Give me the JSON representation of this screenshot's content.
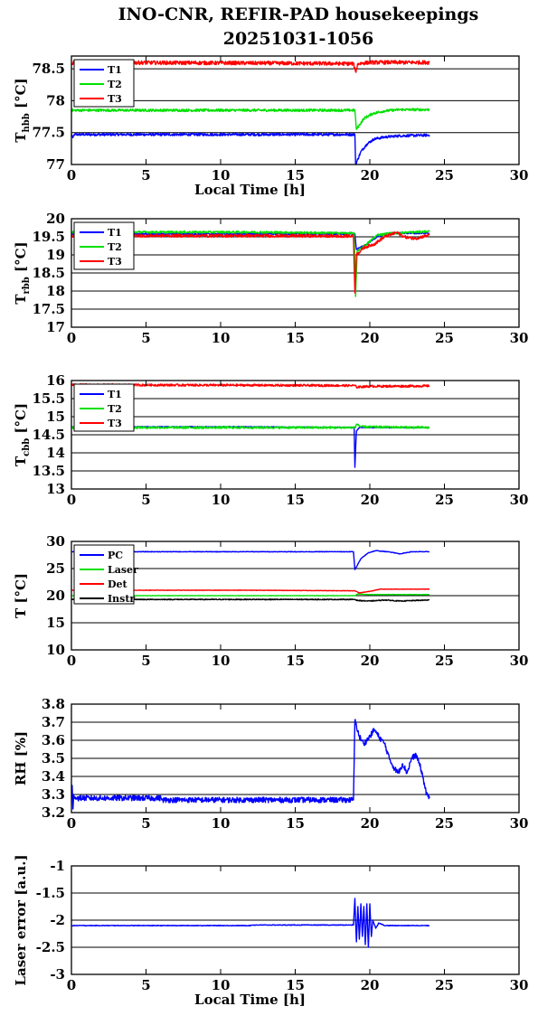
{
  "figure": {
    "title_line1": "INO-CNR, REFIR-PAD housekeepings",
    "title_line2": "20251031-1056"
  },
  "chart_data": [
    {
      "type": "line",
      "ylabel_main": "T",
      "ylabel_sub": "hbb",
      "ylabel_unit": " [°C]",
      "xlabel": "Local Time [h]",
      "xlim": [
        0,
        30
      ],
      "ylim": [
        77,
        78.7
      ],
      "xticks": [
        0,
        5,
        10,
        15,
        20,
        25,
        30
      ],
      "yticks": [
        77,
        77.5,
        78,
        78.5
      ],
      "ytick_labels": [
        "77",
        "77.5",
        "78",
        "78.5"
      ],
      "grid": "horizontal",
      "legend_position": "top-left",
      "series": [
        {
          "name": "T1",
          "color": "#0000ff",
          "noise": 0.02,
          "points": [
            [
              0,
              77.47
            ],
            [
              0.1,
              77.42
            ],
            [
              0.2,
              77.47
            ],
            [
              12,
              77.47
            ],
            [
              19,
              77.47
            ],
            [
              19.05,
              77.0
            ],
            [
              19.4,
              77.2
            ],
            [
              19.8,
              77.32
            ],
            [
              20.3,
              77.4
            ],
            [
              21,
              77.43
            ],
            [
              22,
              77.45
            ],
            [
              24,
              77.46
            ]
          ]
        },
        {
          "name": "T2",
          "color": "#00e000",
          "noise": 0.02,
          "points": [
            [
              0,
              77.85
            ],
            [
              12,
              77.85
            ],
            [
              19,
              77.85
            ],
            [
              19.1,
              77.55
            ],
            [
              19.6,
              77.72
            ],
            [
              20.2,
              77.8
            ],
            [
              21,
              77.84
            ],
            [
              22,
              77.86
            ],
            [
              24,
              77.86
            ]
          ]
        },
        {
          "name": "T3",
          "color": "#ff0000",
          "noise": 0.03,
          "points": [
            [
              0,
              78.59
            ],
            [
              0.5,
              78.6
            ],
            [
              12,
              78.59
            ],
            [
              18.9,
              78.58
            ],
            [
              19.05,
              78.45
            ],
            [
              19.2,
              78.58
            ],
            [
              20,
              78.6
            ],
            [
              24,
              78.6
            ]
          ]
        }
      ]
    },
    {
      "type": "line",
      "ylabel_main": "T",
      "ylabel_sub": "rbb",
      "ylabel_unit": " [°C]",
      "xlabel": "",
      "xlim": [
        0,
        30
      ],
      "ylim": [
        17,
        20
      ],
      "xticks": [
        0,
        5,
        10,
        15,
        20,
        25,
        30
      ],
      "yticks": [
        17,
        17.5,
        18,
        18.5,
        19,
        19.5,
        20
      ],
      "ytick_labels": [
        "17",
        "17.5",
        "18",
        "18.5",
        "19",
        "19.5",
        "20"
      ],
      "grid": "horizontal",
      "legend_position": "top-left",
      "series": [
        {
          "name": "T1",
          "color": "#0000ff",
          "noise": 0.02,
          "points": [
            [
              0,
              19.58
            ],
            [
              12,
              19.58
            ],
            [
              19,
              19.58
            ],
            [
              19.1,
              19.15
            ],
            [
              19.8,
              19.3
            ],
            [
              20.5,
              19.5
            ],
            [
              21.2,
              19.6
            ],
            [
              22,
              19.6
            ],
            [
              24,
              19.6
            ]
          ]
        },
        {
          "name": "T2",
          "color": "#00e000",
          "noise": 0.03,
          "points": [
            [
              0,
              19.63
            ],
            [
              12,
              19.63
            ],
            [
              18.95,
              19.6
            ],
            [
              19.05,
              17.85
            ],
            [
              19.15,
              19.1
            ],
            [
              19.8,
              19.3
            ],
            [
              20.5,
              19.55
            ],
            [
              21.5,
              19.6
            ],
            [
              24,
              19.65
            ]
          ]
        },
        {
          "name": "T3",
          "color": "#ff0000",
          "noise": 0.04,
          "points": [
            [
              0,
              19.53
            ],
            [
              12,
              19.53
            ],
            [
              18.9,
              19.52
            ],
            [
              19.0,
              17.95
            ],
            [
              19.1,
              19.0
            ],
            [
              19.6,
              19.2
            ],
            [
              20.3,
              19.3
            ],
            [
              21,
              19.5
            ],
            [
              21.8,
              19.62
            ],
            [
              22.3,
              19.5
            ],
            [
              23,
              19.45
            ],
            [
              24,
              19.55
            ]
          ]
        }
      ]
    },
    {
      "type": "line",
      "ylabel_main": "T",
      "ylabel_sub": "cbb",
      "ylabel_unit": " [°C]",
      "xlabel": "",
      "xlim": [
        0,
        30
      ],
      "ylim": [
        13,
        16
      ],
      "xticks": [
        0,
        5,
        10,
        15,
        20,
        25,
        30
      ],
      "yticks": [
        13,
        13.5,
        14,
        14.5,
        15,
        15.5,
        16
      ],
      "ytick_labels": [
        "13",
        "13.5",
        "14",
        "14.5",
        "15",
        "15.5",
        "16"
      ],
      "grid": "horizontal",
      "legend_position": "top-left",
      "series": [
        {
          "name": "T1",
          "color": "#0000ff",
          "noise": 0.01,
          "points": [
            [
              0,
              14.72
            ],
            [
              12,
              14.72
            ],
            [
              18.95,
              14.7
            ],
            [
              19.0,
              13.6
            ],
            [
              19.1,
              14.6
            ],
            [
              19.3,
              14.7
            ],
            [
              24,
              14.7
            ]
          ]
        },
        {
          "name": "T2",
          "color": "#00e000",
          "noise": 0.03,
          "points": [
            [
              0,
              14.7
            ],
            [
              12,
              14.7
            ],
            [
              19,
              14.7
            ],
            [
              19.15,
              14.8
            ],
            [
              19.4,
              14.72
            ],
            [
              24,
              14.7
            ]
          ]
        },
        {
          "name": "T3",
          "color": "#ff0000",
          "noise": 0.03,
          "points": [
            [
              0,
              15.88
            ],
            [
              12,
              15.87
            ],
            [
              19,
              15.86
            ],
            [
              19.1,
              15.82
            ],
            [
              20,
              15.84
            ],
            [
              24,
              15.85
            ]
          ]
        }
      ]
    },
    {
      "type": "line",
      "ylabel_main": "T [°C]",
      "ylabel_sub": "",
      "ylabel_unit": "",
      "xlabel": "",
      "xlim": [
        0,
        30
      ],
      "ylim": [
        10,
        30
      ],
      "xticks": [
        0,
        5,
        10,
        15,
        20,
        25,
        30
      ],
      "yticks": [
        10,
        15,
        20,
        25,
        30
      ],
      "ytick_labels": [
        "10",
        "15",
        "20",
        "25",
        "30"
      ],
      "grid": "horizontal",
      "legend_position": "top-left",
      "series": [
        {
          "name": "PC",
          "color": "#0000ff",
          "noise": 0.05,
          "points": [
            [
              0,
              28.1
            ],
            [
              12,
              28.1
            ],
            [
              18.9,
              28.1
            ],
            [
              19.0,
              24.8
            ],
            [
              19.4,
              26.8
            ],
            [
              19.9,
              27.9
            ],
            [
              20.4,
              28.3
            ],
            [
              21.5,
              28.0
            ],
            [
              22,
              27.7
            ],
            [
              22.8,
              28.1
            ],
            [
              24,
              28.1
            ]
          ]
        },
        {
          "name": "Laser",
          "color": "#00e000",
          "noise": 0.03,
          "points": [
            [
              0,
              20.0
            ],
            [
              12,
              20.0
            ],
            [
              19,
              20.0
            ],
            [
              19.2,
              20.3
            ],
            [
              20,
              20.2
            ],
            [
              24,
              20.2
            ]
          ]
        },
        {
          "name": "Det",
          "color": "#ff0000",
          "noise": 0.04,
          "points": [
            [
              0,
              21.0
            ],
            [
              12,
              21.0
            ],
            [
              19,
              20.9
            ],
            [
              19.3,
              20.5
            ],
            [
              20,
              20.8
            ],
            [
              20.7,
              21.2
            ],
            [
              24,
              21.2
            ]
          ]
        },
        {
          "name": "Instr",
          "color": "#000000",
          "noise": 0.08,
          "points": [
            [
              0,
              19.3
            ],
            [
              12,
              19.3
            ],
            [
              19,
              19.3
            ],
            [
              19.2,
              19.1
            ],
            [
              20,
              19.0
            ],
            [
              21,
              19.2
            ],
            [
              22,
              19.0
            ],
            [
              24,
              19.2
            ]
          ]
        }
      ]
    },
    {
      "type": "line",
      "ylabel_main": "RH [%]",
      "ylabel_sub": "",
      "ylabel_unit": "",
      "xlabel": "",
      "xlim": [
        0,
        30
      ],
      "ylim": [
        3.2,
        3.8
      ],
      "xticks": [
        0,
        5,
        10,
        15,
        20,
        25,
        30
      ],
      "yticks": [
        3.2,
        3.3,
        3.4,
        3.5,
        3.6,
        3.7,
        3.8
      ],
      "ytick_labels": [
        "3.2",
        "3.3",
        "3.4",
        "3.5",
        "3.6",
        "3.7",
        "3.8"
      ],
      "grid": "horizontal",
      "legend_position": "none",
      "series": [
        {
          "name": "",
          "color": "#0000ff",
          "noise": 0.015,
          "points": [
            [
              0,
              3.28
            ],
            [
              0.05,
              3.35
            ],
            [
              0.1,
              3.22
            ],
            [
              0.15,
              3.3
            ],
            [
              0.3,
              3.28
            ],
            [
              6,
              3.28
            ],
            [
              6.1,
              3.27
            ],
            [
              18,
              3.27
            ],
            [
              18.9,
              3.27
            ],
            [
              19.0,
              3.71
            ],
            [
              19.3,
              3.62
            ],
            [
              19.6,
              3.58
            ],
            [
              20.0,
              3.62
            ],
            [
              20.3,
              3.66
            ],
            [
              20.6,
              3.62
            ],
            [
              21.0,
              3.58
            ],
            [
              21.3,
              3.5
            ],
            [
              21.6,
              3.45
            ],
            [
              21.9,
              3.42
            ],
            [
              22.2,
              3.47
            ],
            [
              22.5,
              3.42
            ],
            [
              22.8,
              3.5
            ],
            [
              23.1,
              3.52
            ],
            [
              23.4,
              3.45
            ],
            [
              23.6,
              3.38
            ],
            [
              23.8,
              3.3
            ],
            [
              24,
              3.28
            ]
          ]
        }
      ]
    },
    {
      "type": "line",
      "ylabel_main": "Laser error [a.u.]",
      "ylabel_sub": "",
      "ylabel_unit": "",
      "xlabel": "Local Time [h]",
      "xlim": [
        0,
        30
      ],
      "ylim": [
        -3,
        -1
      ],
      "xticks": [
        0,
        5,
        10,
        15,
        20,
        25,
        30
      ],
      "yticks": [
        -3,
        -2.5,
        -2,
        -1.5,
        -1
      ],
      "ytick_labels": [
        "-3",
        "-2.5",
        "-2",
        "-1.5",
        "-1"
      ],
      "grid": "horizontal",
      "legend_position": "none",
      "series": [
        {
          "name": "",
          "color": "#0000ff",
          "noise": 0.006,
          "points": [
            [
              0,
              -2.1
            ],
            [
              12,
              -2.1
            ],
            [
              12.1,
              -2.09
            ],
            [
              18.9,
              -2.09
            ],
            [
              19.0,
              -1.6
            ],
            [
              19.1,
              -2.4
            ],
            [
              19.2,
              -1.75
            ],
            [
              19.3,
              -2.35
            ],
            [
              19.4,
              -1.7
            ],
            [
              19.5,
              -2.3
            ],
            [
              19.6,
              -1.75
            ],
            [
              19.7,
              -2.45
            ],
            [
              19.8,
              -1.7
            ],
            [
              19.9,
              -2.5
            ],
            [
              20.0,
              -1.7
            ],
            [
              20.1,
              -2.3
            ],
            [
              20.2,
              -2.0
            ],
            [
              20.4,
              -2.15
            ],
            [
              20.6,
              -2.05
            ],
            [
              21,
              -2.1
            ],
            [
              24,
              -2.1
            ]
          ]
        }
      ]
    }
  ]
}
